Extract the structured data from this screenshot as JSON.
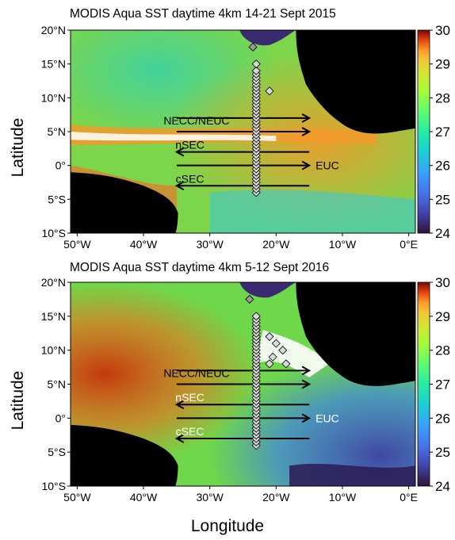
{
  "figure": {
    "xlabel": "Longitude",
    "ylabel": "Latitude"
  },
  "chart_data": [
    {
      "type": "heatmap",
      "title": "MODIS Aqua SST daytime 4km 14-21 Sept 2015",
      "xlabel": "Longitude",
      "ylabel": "Latitude",
      "xlim": [
        -51,
        1
      ],
      "ylim": [
        -10,
        20
      ],
      "x_ticks": [
        -50,
        -40,
        -30,
        -20,
        -10,
        0
      ],
      "x_tick_labels": [
        "50°W",
        "40°W",
        "30°W",
        "20°W",
        "10°W",
        "0°E"
      ],
      "y_ticks": [
        -10,
        -5,
        0,
        5,
        10,
        15,
        20
      ],
      "y_tick_labels": [
        "10°S",
        "5°S",
        "0°",
        "5°N",
        "10°N",
        "15°N",
        "20°N"
      ],
      "colorbar": {
        "min": 24,
        "max": 30,
        "ticks": [
          24,
          25,
          26,
          27,
          28,
          29,
          30
        ],
        "colormap": "jet"
      },
      "currents": [
        {
          "name": "NECC/NEUC",
          "lat": 7,
          "lon_from": -35,
          "lon_to": -15,
          "direction": "east"
        },
        {
          "name": "",
          "lat": 5,
          "lon_from": -35,
          "lon_to": -15,
          "direction": "east"
        },
        {
          "name": "nSEC",
          "lat": 2,
          "lon_from": -15,
          "lon_to": -35,
          "direction": "west"
        },
        {
          "name": "EUC",
          "lat": 0,
          "lon_from": -35,
          "lon_to": -15,
          "direction": "east"
        },
        {
          "name": "cSEC",
          "lat": -3,
          "lon_from": -15,
          "lon_to": -35,
          "direction": "west"
        }
      ],
      "stations": [
        {
          "lon": -23,
          "lat_from": -4,
          "lat_to": 14,
          "step": 0.5
        },
        {
          "lon": -23.5,
          "lat": 17.5,
          "shade": "gray"
        },
        {
          "lon": -21,
          "lat": 11
        },
        {
          "lon": -23,
          "lat": 15
        }
      ]
    },
    {
      "type": "heatmap",
      "title": "MODIS Aqua SST daytime 4km 5-12 Sept 2016",
      "xlabel": "Longitude",
      "ylabel": "Latitude",
      "xlim": [
        -51,
        1
      ],
      "ylim": [
        -10,
        20
      ],
      "x_ticks": [
        -50,
        -40,
        -30,
        -20,
        -10,
        0
      ],
      "x_tick_labels": [
        "50°W",
        "40°W",
        "30°W",
        "20°W",
        "10°W",
        "0°E"
      ],
      "y_ticks": [
        -10,
        -5,
        0,
        5,
        10,
        15,
        20
      ],
      "y_tick_labels": [
        "10°S",
        "5°S",
        "0°",
        "5°N",
        "10°N",
        "15°N",
        "20°N"
      ],
      "colorbar": {
        "min": 24,
        "max": 30,
        "ticks": [
          24,
          25,
          26,
          27,
          28,
          29,
          30
        ],
        "colormap": "jet"
      },
      "currents": [
        {
          "name": "NECC/NEUC",
          "lat": 7,
          "lon_from": -35,
          "lon_to": -15,
          "direction": "east"
        },
        {
          "name": "",
          "lat": 5,
          "lon_from": -35,
          "lon_to": -15,
          "direction": "east"
        },
        {
          "name": "nSEC",
          "lat": 2,
          "lon_from": -15,
          "lon_to": -35,
          "direction": "west"
        },
        {
          "name": "EUC",
          "lat": 0,
          "lon_from": -35,
          "lon_to": -15,
          "direction": "east"
        },
        {
          "name": "cSEC",
          "lat": -3,
          "lon_from": -15,
          "lon_to": -35,
          "direction": "west"
        }
      ],
      "stations": [
        {
          "lon": -23,
          "lat_from": -4,
          "lat_to": 15,
          "step": 0.5
        },
        {
          "lon": -24,
          "lat": 17.5,
          "shade": "gray"
        },
        {
          "lon": -21,
          "lat": 12
        },
        {
          "lon": -20,
          "lat": 11
        },
        {
          "lon": -19,
          "lat": 10
        },
        {
          "lon": -20.5,
          "lat": 9
        },
        {
          "lon": -18.5,
          "lat": 8
        },
        {
          "lon": -21,
          "lat": 8
        }
      ]
    }
  ],
  "colors": {
    "land": "#000000",
    "missing_data": "#ffffff",
    "arrows": "#000000",
    "station_marker": "#d8d8d8",
    "station_marker_gray": "#9a9a9a"
  }
}
